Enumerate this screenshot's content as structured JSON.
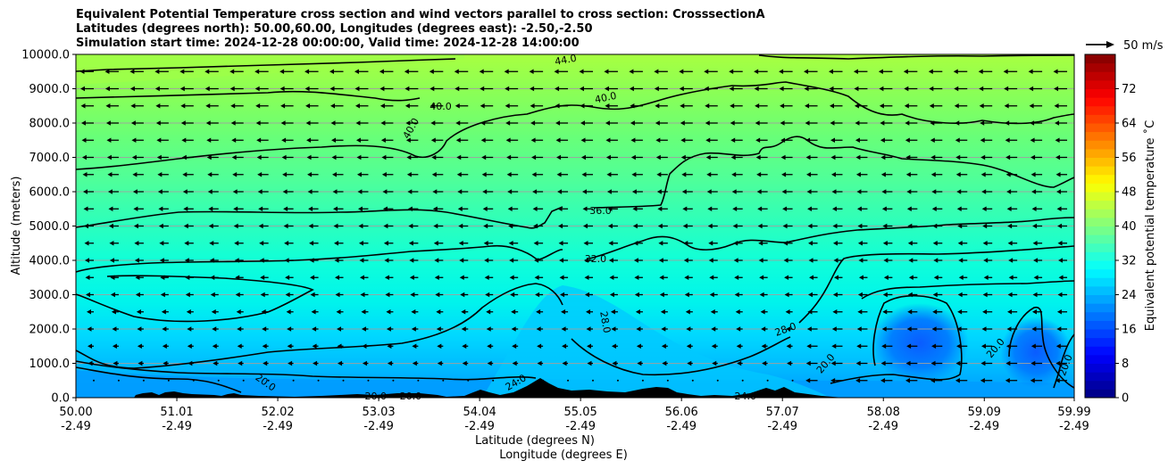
{
  "chart_data": {
    "type": "contourf",
    "title_lines": [
      "Equivalent Potential Temperature cross section and wind vectors parallel to cross section: CrosssectionA",
      "Latitudes (degrees north): 50.00,60.00, Longitudes (degrees east): -2.50,-2.50",
      "Simulation start time: 2024-12-28 00:00:00, Valid time: 2024-12-28 14:00:00"
    ],
    "ylabel": "Altitude (meters)",
    "xlabel_lat": "Latitude (degrees N)",
    "xlabel_lon": "Longitude (degrees E)",
    "ylim": [
      0,
      10000
    ],
    "yticks": [
      "0.0",
      "1000.0",
      "2000.0",
      "3000.0",
      "4000.0",
      "5000.0",
      "6000.0",
      "7000.0",
      "8000.0",
      "9000.0",
      "10000.0"
    ],
    "xlim": [
      50.0,
      59.99
    ],
    "xticks": [
      {
        "lat": "50.00",
        "lon": "-2.49",
        "v": 50.0
      },
      {
        "lat": "51.01",
        "lon": "-2.49",
        "v": 51.01
      },
      {
        "lat": "52.02",
        "lon": "-2.49",
        "v": 52.02
      },
      {
        "lat": "53.03",
        "lon": "-2.49",
        "v": 53.03
      },
      {
        "lat": "54.04",
        "lon": "-2.49",
        "v": 54.04
      },
      {
        "lat": "55.05",
        "lon": "-2.49",
        "v": 55.05
      },
      {
        "lat": "56.06",
        "lon": "-2.49",
        "v": 56.06
      },
      {
        "lat": "57.07",
        "lon": "-2.49",
        "v": 57.07
      },
      {
        "lat": "58.08",
        "lon": "-2.49",
        "v": 58.08
      },
      {
        "lat": "59.09",
        "lon": "-2.49",
        "v": 59.09
      },
      {
        "lat": "59.99",
        "lon": "-2.49",
        "v": 59.99
      }
    ],
    "colorbar": {
      "label": "Equivalent potential temperature ˚C",
      "min": 0,
      "max": 80,
      "ticks": [
        "0",
        "8",
        "16",
        "24",
        "32",
        "40",
        "48",
        "56",
        "64",
        "72"
      ],
      "tick_values": [
        0,
        8,
        16,
        24,
        32,
        40,
        48,
        56,
        64,
        72
      ]
    },
    "quiver_key": "50 m/s",
    "contour_levels": [
      20,
      24,
      28,
      32,
      36,
      40,
      44
    ],
    "contour_labels": [
      {
        "text": "44.0",
        "lat": 54.9,
        "alt": 9850,
        "rot": -10
      },
      {
        "text": "40.0",
        "lat": 53.35,
        "alt": 7850,
        "rot": -60
      },
      {
        "text": "40.0",
        "lat": 53.65,
        "alt": 8500,
        "rot": 0
      },
      {
        "text": "40.0",
        "lat": 55.3,
        "alt": 8750,
        "rot": -12
      },
      {
        "text": "36.0",
        "lat": 55.25,
        "alt": 5450,
        "rot": 0
      },
      {
        "text": "32.0",
        "lat": 55.2,
        "alt": 4050,
        "rot": 0
      },
      {
        "text": "28.0",
        "lat": 55.3,
        "alt": 2200,
        "rot": 80
      },
      {
        "text": "28.0",
        "lat": 57.1,
        "alt": 2000,
        "rot": -20
      },
      {
        "text": "20.0",
        "lat": 57.5,
        "alt": 1000,
        "rot": -50
      },
      {
        "text": "20.0",
        "lat": 59.2,
        "alt": 1450,
        "rot": -50
      },
      {
        "text": "20.0",
        "lat": 59.9,
        "alt": 950,
        "rot": -70
      },
      {
        "text": "20.0",
        "lat": 51.9,
        "alt": 450,
        "rot": 35
      },
      {
        "text": "20.0",
        "lat": 53.0,
        "alt": 50,
        "rot": 0
      },
      {
        "text": "20.0",
        "lat": 53.35,
        "alt": 50,
        "rot": 0
      },
      {
        "text": "24.0",
        "lat": 54.4,
        "alt": 450,
        "rot": -30
      },
      {
        "text": "24.0",
        "lat": 56.7,
        "alt": 50,
        "rot": 0
      }
    ]
  }
}
